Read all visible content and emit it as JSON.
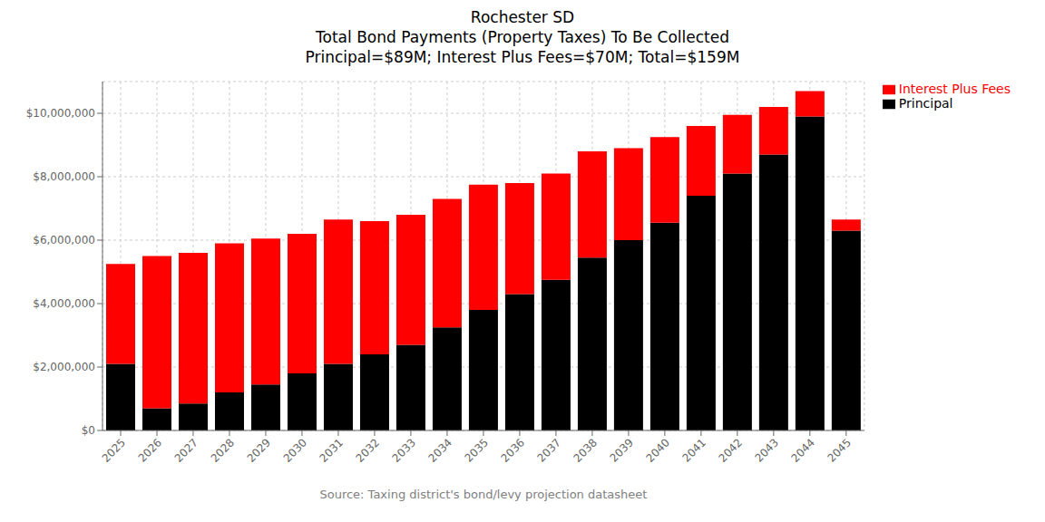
{
  "chart_data": {
    "type": "bar",
    "title": "Rochester SD\nTotal Bond Payments (Property Taxes) To Be Collected\nPrincipal=$89M; Interest Plus Fees=$70M; Total=$159M",
    "x_label": "Source: Taxing district's bond/levy projection datasheet",
    "categories": [
      "2025",
      "2026",
      "2027",
      "2028",
      "2029",
      "2030",
      "2031",
      "2032",
      "2033",
      "2034",
      "2035",
      "2036",
      "2037",
      "2038",
      "2039",
      "2040",
      "2041",
      "2042",
      "2043",
      "2044",
      "2045"
    ],
    "series": [
      {
        "name": "Principal",
        "color": "#000000",
        "values": [
          2100000,
          700000,
          850000,
          1200000,
          1450000,
          1800000,
          2100000,
          2400000,
          2700000,
          3250000,
          3800000,
          4300000,
          4750000,
          5450000,
          6000000,
          6550000,
          7400000,
          8100000,
          8700000,
          9900000,
          6300000
        ]
      },
      {
        "name": "Interest Plus Fees",
        "color": "#ff0000",
        "values": [
          3150000,
          4800000,
          4750000,
          4700000,
          4600000,
          4400000,
          4550000,
          4200000,
          4100000,
          4050000,
          3950000,
          3500000,
          3350000,
          3350000,
          2900000,
          2700000,
          2200000,
          1850000,
          1500000,
          800000,
          350000
        ]
      }
    ],
    "stacked": true,
    "ylim": [
      0,
      11000000
    ],
    "yticks": [
      {
        "value": 0,
        "label": "$0"
      },
      {
        "value": 2000000,
        "label": "$2,000,000"
      },
      {
        "value": 4000000,
        "label": "$4,000,000"
      },
      {
        "value": 6000000,
        "label": "$6,000,000"
      },
      {
        "value": 8000000,
        "label": "$8,000,000"
      },
      {
        "value": 10000000,
        "label": "$10,000,000"
      }
    ],
    "grid": true,
    "legend": "right"
  }
}
